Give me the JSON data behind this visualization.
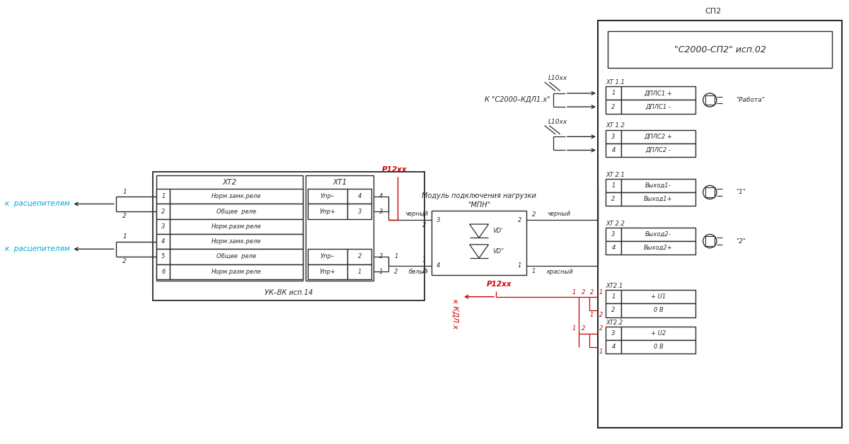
{
  "bg": "#ffffff",
  "lc": "#2a2a2a",
  "rc": "#cc0000",
  "cc": "#00aacc",
  "fw": 12.0,
  "fh": 6.28,
  "dpi": 100,
  "sp2_title": "СП2",
  "sp2_box": "\"С2000-СП2\" исп.02",
  "uk_bk": "УК–ВК исп.14",
  "xt2_hdr": "ХТ2",
  "xt1_hdr": "ХТ1",
  "mpn1": "Модуль подключения нагрузки",
  "mpn2": "\"МПН\"",
  "l10xx": "L10хх",
  "p12xx": "Р12хх",
  "kdl1": "К \"С2000–КДЛ1.х\"",
  "rass": "к  расцепителям",
  "kdl_low": "к КДЛ.х",
  "rabota": "\"Работа\"",
  "lbl1": "\"1\"",
  "lbl2": "\"2\"",
  "xt11": "ХТ 1.1",
  "xt12": "ХТ 1.2",
  "xt21": "ХТ 2.1",
  "xt22": "ХТ 2.2",
  "xt21b": "ХТ2.1",
  "xt22b": "ХТ2.2",
  "d1p": "ДПЛС1 +",
  "d1m": "ДПЛС1 -",
  "d2p": "ДПЛС2 +",
  "d2m": "ДПЛС2 -",
  "v1m": "Выход1-",
  "v1p": "Выход1+",
  "v2m": "Выход2-",
  "v2p": "Выход2+",
  "pu1": "+ U1",
  "zv1": "0 В",
  "pu2": "+ U2",
  "zv2": "0 В",
  "blk": "черный",
  "wht": "белый",
  "red": "красный",
  "blk2": "черный",
  "vdp": "VD'",
  "vdpp": "VD\""
}
